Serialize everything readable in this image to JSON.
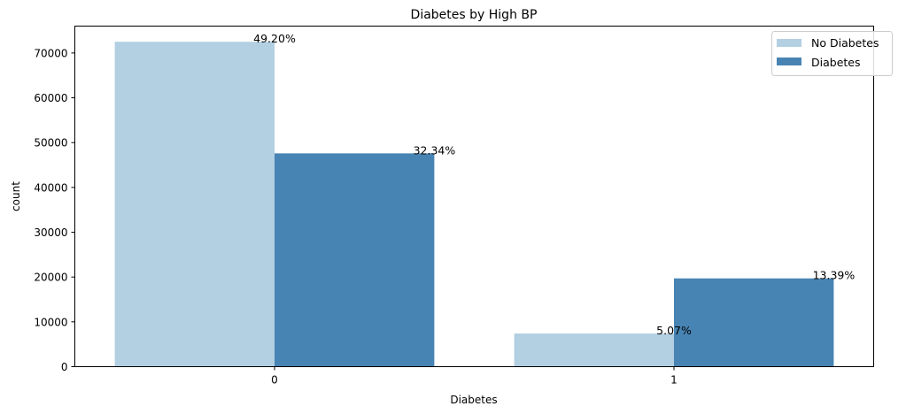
{
  "chart_data": {
    "type": "bar",
    "title": "Diabetes by High BP",
    "xlabel": "Diabetes",
    "ylabel": "count",
    "categories": [
      "0",
      "1"
    ],
    "series": [
      {
        "name": "No Diabetes",
        "color": "#b3cfe2",
        "values": [
          72500,
          7400
        ],
        "labels": [
          "49.20%",
          "5.07%"
        ]
      },
      {
        "name": "Diabetes",
        "color": "#4884b3",
        "values": [
          47600,
          19700
        ],
        "labels": [
          "32.34%",
          "13.39%"
        ]
      }
    ],
    "ylim": [
      0,
      76000
    ],
    "yticks": [
      0,
      10000,
      20000,
      30000,
      40000,
      50000,
      60000,
      70000
    ],
    "ytick_labels": [
      "0",
      "10000",
      "20000",
      "30000",
      "40000",
      "50000",
      "60000",
      "70000"
    ],
    "grid": false,
    "legend_position": "top-right"
  }
}
